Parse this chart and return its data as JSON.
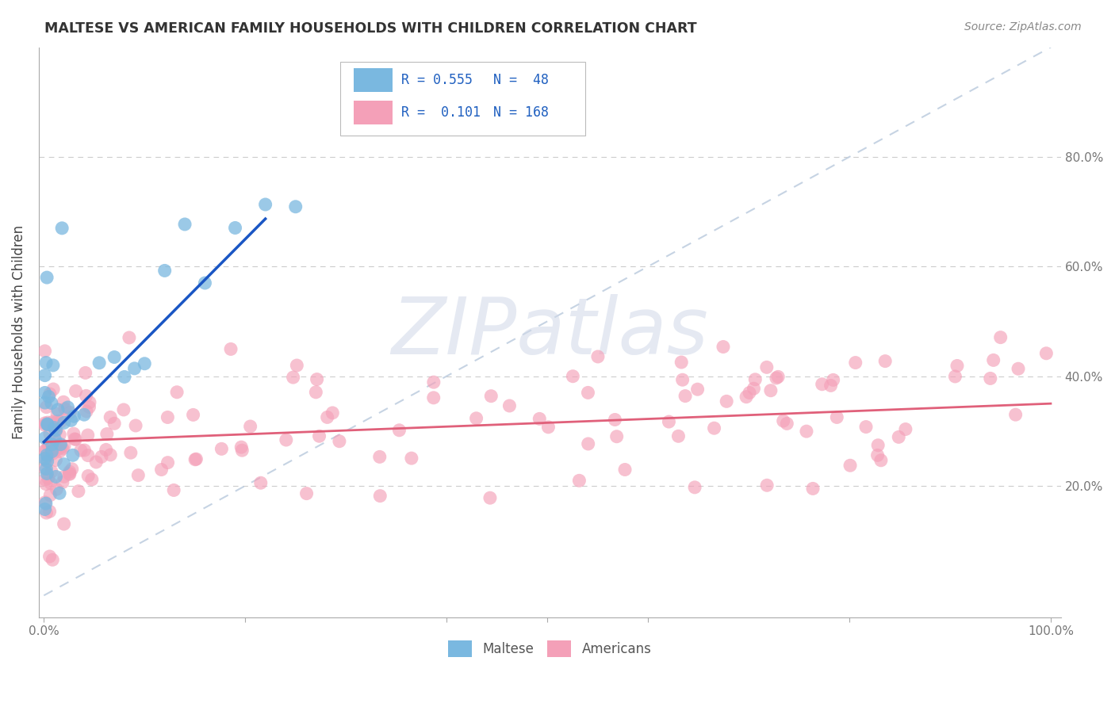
{
  "title": "MALTESE VS AMERICAN FAMILY HOUSEHOLDS WITH CHILDREN CORRELATION CHART",
  "source": "Source: ZipAtlas.com",
  "ylabel": "Family Households with Children",
  "color_maltese": "#7ab8e0",
  "color_americans": "#f4a0b8",
  "color_maltese_line": "#1a56c4",
  "color_americans_line": "#e0607a",
  "color_diag_line": "#c0cfe0",
  "background_color": "#ffffff",
  "grid_color": "#cccccc",
  "watermark_text": "ZIPatlas",
  "watermark_color": "#d0d8e8",
  "legend_r1": "R = 0.555",
  "legend_n1": "N =  48",
  "legend_r2": "R =  0.101",
  "legend_n2": "N = 168",
  "legend_text_color": "#2060c0",
  "title_color": "#333333",
  "source_color": "#888888",
  "axis_label_color": "#444444",
  "tick_color": "#777777"
}
